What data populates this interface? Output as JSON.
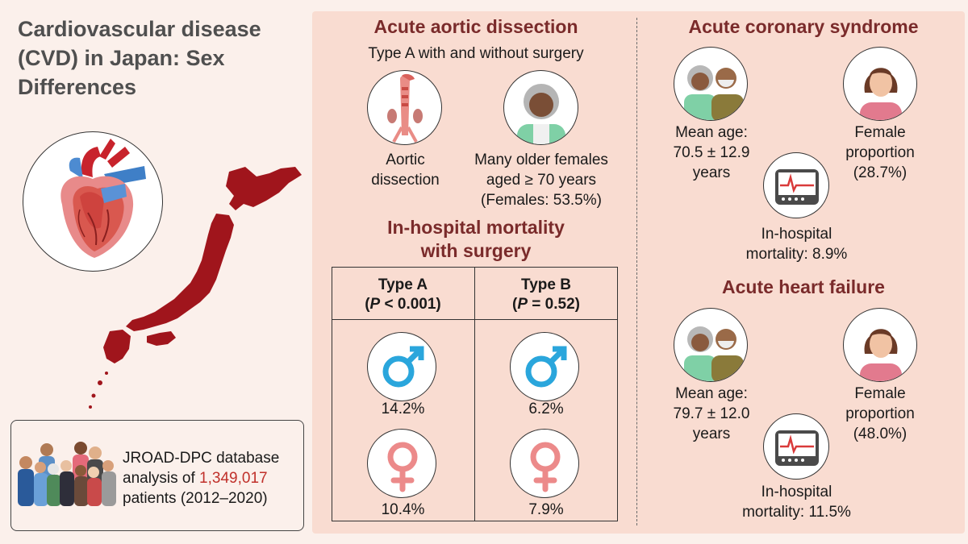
{
  "title": "Cardiovascular disease (CVD) in Japan: Sex Differences",
  "database": {
    "line1": "JROAD-DPC database",
    "line2_pre": "analysis of ",
    "patients_count": "1,349,017",
    "line3": "patients (2012–2020)"
  },
  "aortic": {
    "heading": "Acute aortic dissection",
    "subheading": "Type A with and without surgery",
    "icon1_label_line1": "Aortic",
    "icon1_label_line2": "dissection",
    "icon2_label_line1": "Many older females",
    "icon2_label_line2": "aged ≥ 70 years",
    "icon2_label_line3": "(Females: 53.5%)",
    "mortality_heading_line1": "In-hospital mortality",
    "mortality_heading_line2": "with surgery",
    "table": {
      "col_a_title": "Type A",
      "col_a_p_open": "(",
      "col_a_p_italic": "P",
      "col_a_p_rest": " < 0.001)",
      "col_b_title": "Type B",
      "col_b_p_open": "(",
      "col_b_p_italic": "P",
      "col_b_p_rest": " = 0.52)",
      "male_a": "14.2%",
      "male_b": "6.2%",
      "female_a": "10.4%",
      "female_b": "7.9%"
    }
  },
  "acs": {
    "heading": "Acute coronary syndrome",
    "age_line1": "Mean age:",
    "age_line2": "70.5 ± 12.9",
    "age_line3": "years",
    "female_line1": "Female",
    "female_line2": "proportion",
    "female_line3": "(28.7%)",
    "mort_line1": "In-hospital",
    "mort_line2": "mortality: 8.9%"
  },
  "ahf": {
    "heading": "Acute heart failure",
    "age_line1": "Mean age:",
    "age_line2": "79.7 ± 12.0",
    "age_line3": "years",
    "female_line1": "Female",
    "female_line2": "proportion",
    "female_line3": "(48.0%)",
    "mort_line1": "In-hospital",
    "mort_line2": "mortality: 11.5%"
  },
  "colors": {
    "heading_red": "#7a2b2b",
    "male_blue": "#2aa6dc",
    "female_pink": "#ec8a8a",
    "japan_red": "#a0151c",
    "panel_bg": "#f9dcd1",
    "page_bg": "#fbf0eb"
  },
  "icons": {
    "heart": "heart-illustration",
    "japan": "japan-map",
    "male": "male-symbol",
    "female": "female-symbol",
    "monitor": "ecg-monitor",
    "elderly": "elderly-couple",
    "woman": "woman-portrait",
    "aorta": "aorta-illustration",
    "crowd": "people-group"
  }
}
